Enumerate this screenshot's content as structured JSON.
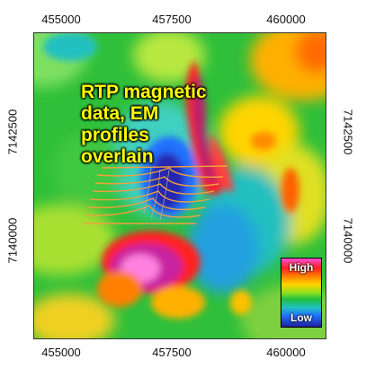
{
  "map": {
    "title_lines": [
      "RTP magnetic",
      "data, EM",
      "profiles",
      "overlain"
    ],
    "x_ticks": [
      "455000",
      "457500",
      "460000"
    ],
    "y_ticks": [
      "7142500",
      "7140000"
    ],
    "legend": {
      "high": "High",
      "low": "Low"
    },
    "colors": {
      "high": "#ff4fd8",
      "red": "#ff2020",
      "orange": "#ff8000",
      "yellow": "#ffd400",
      "green": "#2fbf3a",
      "cyan": "#20c0c0",
      "blue": "#2070ff",
      "low": "#20209a",
      "title": "#ffff00",
      "profile": "#f0a040"
    }
  }
}
